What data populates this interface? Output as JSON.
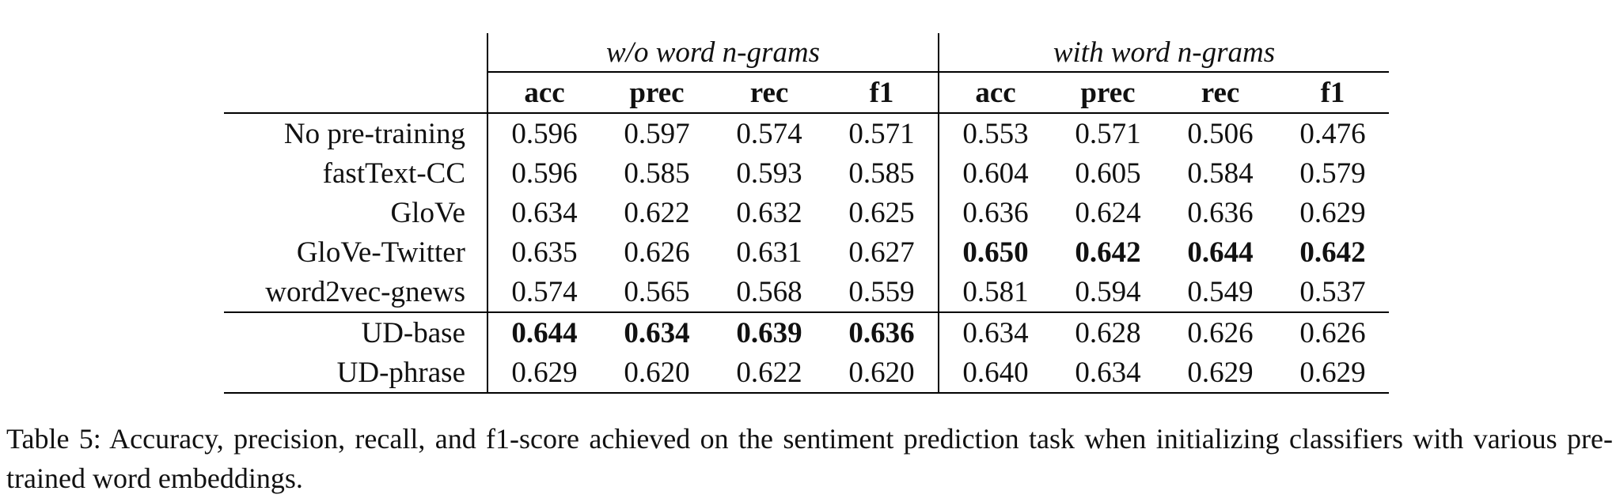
{
  "table": {
    "group_headers": [
      "w/o word n-grams",
      "with word n-grams"
    ],
    "metrics": [
      "acc",
      "prec",
      "rec",
      "f1",
      "acc",
      "prec",
      "rec",
      "f1"
    ],
    "rows": [
      {
        "label": "No pre-training",
        "values": [
          "0.596",
          "0.597",
          "0.574",
          "0.571",
          "0.553",
          "0.571",
          "0.506",
          "0.476"
        ],
        "bold": [
          false,
          false,
          false,
          false,
          false,
          false,
          false,
          false
        ]
      },
      {
        "label": "fastText-CC",
        "values": [
          "0.596",
          "0.585",
          "0.593",
          "0.585",
          "0.604",
          "0.605",
          "0.584",
          "0.579"
        ],
        "bold": [
          false,
          false,
          false,
          false,
          false,
          false,
          false,
          false
        ]
      },
      {
        "label": "GloVe",
        "values": [
          "0.634",
          "0.622",
          "0.632",
          "0.625",
          "0.636",
          "0.624",
          "0.636",
          "0.629"
        ],
        "bold": [
          false,
          false,
          false,
          false,
          false,
          false,
          false,
          false
        ]
      },
      {
        "label": "GloVe-Twitter",
        "values": [
          "0.635",
          "0.626",
          "0.631",
          "0.627",
          "0.650",
          "0.642",
          "0.644",
          "0.642"
        ],
        "bold": [
          false,
          false,
          false,
          false,
          true,
          true,
          true,
          true
        ]
      },
      {
        "label": "word2vec-gnews",
        "values": [
          "0.574",
          "0.565",
          "0.568",
          "0.559",
          "0.581",
          "0.594",
          "0.549",
          "0.537"
        ],
        "bold": [
          false,
          false,
          false,
          false,
          false,
          false,
          false,
          false
        ]
      },
      {
        "label": "UD-base",
        "values": [
          "0.644",
          "0.634",
          "0.639",
          "0.636",
          "0.634",
          "0.628",
          "0.626",
          "0.626"
        ],
        "bold": [
          true,
          true,
          true,
          true,
          false,
          false,
          false,
          false
        ]
      },
      {
        "label": "UD-phrase",
        "values": [
          "0.629",
          "0.620",
          "0.622",
          "0.620",
          "0.640",
          "0.634",
          "0.629",
          "0.629"
        ],
        "bold": [
          false,
          false,
          false,
          false,
          false,
          false,
          false,
          false
        ]
      }
    ]
  },
  "caption": "Table 5: Accuracy, precision, recall, and f1-score achieved on the sentiment prediction task when initializing classifiers with various pre-trained word embeddings."
}
